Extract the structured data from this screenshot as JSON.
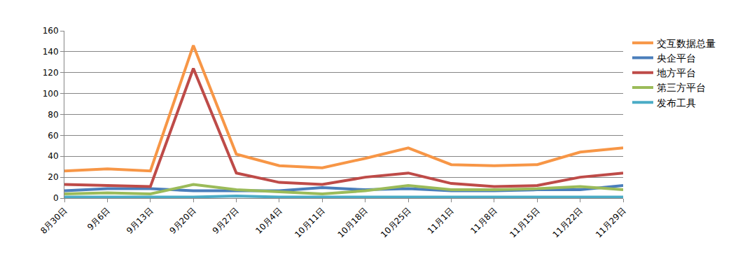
{
  "chart_data": {
    "type": "line",
    "categories": [
      "8月30日",
      "9月6日",
      "9月13日",
      "9月20日",
      "9月27日",
      "10月4日",
      "10月11日",
      "10月18日",
      "10月25日",
      "11月1日",
      "11月8日",
      "11月15日",
      "11月22日",
      "11月29日"
    ],
    "series": [
      {
        "name": "交互数据总量",
        "color": "#F79646",
        "values": [
          26,
          28,
          26,
          146,
          42,
          31,
          29,
          38,
          48,
          32,
          31,
          32,
          44,
          48
        ]
      },
      {
        "name": "央企平台",
        "color": "#4A7EBB",
        "values": [
          7,
          9,
          9,
          7,
          7,
          7,
          10,
          8,
          9,
          7,
          7,
          8,
          8,
          12
        ]
      },
      {
        "name": "地方平台",
        "color": "#BE4B48",
        "values": [
          13,
          12,
          11,
          124,
          24,
          15,
          13,
          20,
          24,
          14,
          11,
          12,
          20,
          24
        ]
      },
      {
        "name": "第三方平台",
        "color": "#9BBB59",
        "values": [
          4,
          5,
          4,
          13,
          8,
          6,
          4,
          7,
          12,
          8,
          8,
          9,
          11,
          8
        ]
      },
      {
        "name": "发布工具",
        "color": "#4BACC6",
        "values": [
          1,
          1,
          1,
          1,
          2,
          1,
          1,
          1,
          1,
          1,
          1,
          1,
          1,
          1
        ]
      }
    ],
    "ylim": [
      0,
      160
    ],
    "yticks": [
      0,
      20,
      40,
      60,
      80,
      100,
      120,
      140,
      160
    ],
    "grid": true,
    "legend": "right"
  }
}
